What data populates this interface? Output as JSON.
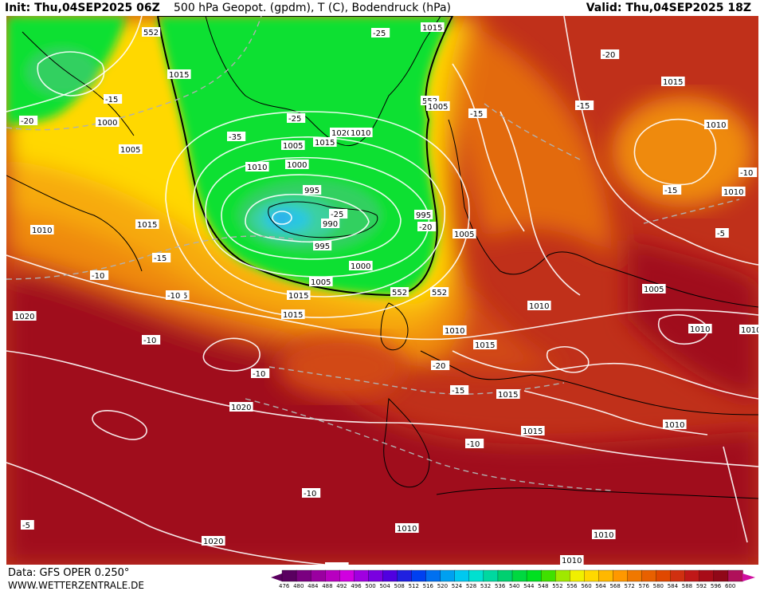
{
  "header": {
    "init": "Init: Thu,04SEP2025 06Z",
    "title": "500 hPa Geopot. (gpdm), T (C), Bodendruck (hPa)",
    "valid": "Valid: Thu,04SEP2025 18Z"
  },
  "footer": {
    "source": "Data: GFS OPER 0.250°",
    "website": "WWW.WETTERZENTRALE.DE"
  },
  "colors": {
    "deep_red": "#a0101c",
    "red": "#c0301a",
    "orange_red": "#d24a14",
    "orange": "#e36a10",
    "orange_light": "#ef8a0c",
    "amber": "#f7aa08",
    "yellow": "#ffd800",
    "yellow_light": "#ffee10",
    "green": "#10e030",
    "green_mid": "#30d060",
    "teal": "#3ad0a0",
    "cyan": "#2cc8e0",
    "blue": "#30a8f0"
  },
  "legend": {
    "ticks": [
      "476",
      "480",
      "484",
      "488",
      "492",
      "496",
      "500",
      "504",
      "508",
      "512",
      "516",
      "520",
      "524",
      "528",
      "532",
      "536",
      "540",
      "544",
      "548",
      "552",
      "556",
      "560",
      "564",
      "568",
      "572",
      "576",
      "580",
      "584",
      "588",
      "592",
      "596",
      "600"
    ],
    "colors": [
      "#5a0060",
      "#7a0080",
      "#9a00a0",
      "#b800c0",
      "#d000e0",
      "#a000e0",
      "#7a00e0",
      "#5000e0",
      "#2020e0",
      "#0040f0",
      "#0070f0",
      "#00a0f0",
      "#00c8f0",
      "#00e0d0",
      "#00d8a0",
      "#00d070",
      "#00d840",
      "#00e020",
      "#40e000",
      "#a0e800",
      "#f0f000",
      "#ffd800",
      "#ffb800",
      "#ff9800",
      "#f07800",
      "#e86000",
      "#e04800",
      "#d03010",
      "#c01818",
      "#a80c18",
      "#900818",
      "#b0105a"
    ]
  },
  "pressure_labels": [
    {
      "text": "1015"
    },
    {
      "text": "552"
    },
    {
      "text": "1015"
    },
    {
      "text": "-25"
    },
    {
      "text": "1000"
    },
    {
      "text": "1005"
    },
    {
      "text": "-15"
    },
    {
      "text": "-20"
    },
    {
      "text": "-35"
    },
    {
      "text": "-25"
    },
    {
      "text": "1020"
    },
    {
      "text": "1010"
    },
    {
      "text": "1005"
    },
    {
      "text": "1015"
    },
    {
      "text": "1010"
    },
    {
      "text": "1000"
    },
    {
      "text": "995"
    },
    {
      "text": "-25"
    },
    {
      "text": "990"
    },
    {
      "text": "995"
    },
    {
      "text": "1000"
    },
    {
      "text": "1005"
    },
    {
      "text": "995"
    },
    {
      "text": "-20"
    },
    {
      "text": "1005"
    },
    {
      "text": "552"
    },
    {
      "text": "1005"
    },
    {
      "text": "-15"
    },
    {
      "text": "-20"
    },
    {
      "text": "1015"
    },
    {
      "text": "-15"
    },
    {
      "text": "1010"
    },
    {
      "text": "-10"
    },
    {
      "text": "-15"
    },
    {
      "text": "1010"
    },
    {
      "text": "1015"
    },
    {
      "text": "-15"
    },
    {
      "text": "-10"
    },
    {
      "text": "1010"
    },
    {
      "text": "1015"
    },
    {
      "text": "1015"
    },
    {
      "text": "-10"
    },
    {
      "text": "-10"
    },
    {
      "text": "1015"
    },
    {
      "text": "1010"
    },
    {
      "text": "1005"
    },
    {
      "text": "-5"
    },
    {
      "text": "1010"
    },
    {
      "text": "1015"
    },
    {
      "text": "-15"
    },
    {
      "text": "-20"
    },
    {
      "text": "1010"
    },
    {
      "text": "1015"
    },
    {
      "text": "1020"
    },
    {
      "text": "-10"
    },
    {
      "text": "1015"
    },
    {
      "text": "-10"
    },
    {
      "text": "1010"
    },
    {
      "text": "1010"
    },
    {
      "text": "1010"
    },
    {
      "text": "-10"
    },
    {
      "text": "1020"
    },
    {
      "text": "1010"
    },
    {
      "text": "-5"
    },
    {
      "text": "1015"
    },
    {
      "text": "552"
    },
    {
      "text": "552"
    },
    {
      "text": "1020"
    },
    {
      "text": "1010"
    }
  ]
}
